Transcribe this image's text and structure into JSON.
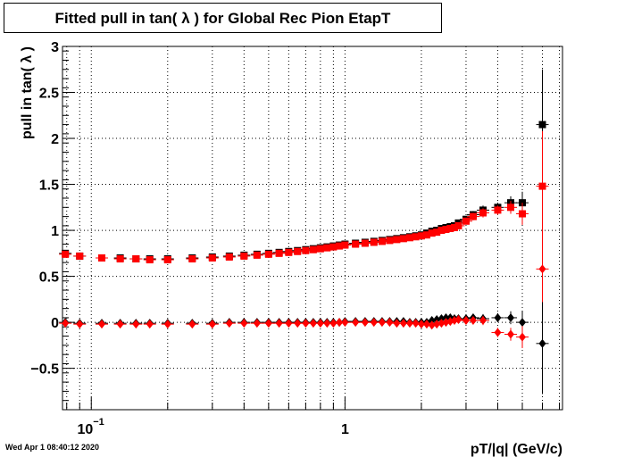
{
  "title": "Fitted pull in tan( λ ) for Global Rec Pion EtapT",
  "timestamp": "Wed Apr  1 08:40:12 2020",
  "chart_data": {
    "type": "scatter",
    "title": "Fitted pull in tan( λ ) for Global Rec Pion EtapT",
    "xlabel": "pT/|q| (GeV/c)",
    "ylabel": "pull in tan( λ )",
    "xscale": "log",
    "xlim": [
      0.077,
      7.2
    ],
    "ylim": [
      -0.95,
      3.0
    ],
    "grid": true,
    "y_ticks": [
      {
        "value": -0.5,
        "label": "−0.5"
      },
      {
        "value": 0,
        "label": "0"
      },
      {
        "value": 0.5,
        "label": "0.5"
      },
      {
        "value": 1,
        "label": "1"
      },
      {
        "value": 1.5,
        "label": "1.5"
      },
      {
        "value": 2,
        "label": "2"
      },
      {
        "value": 2.5,
        "label": "2.5"
      },
      {
        "value": 3,
        "label": "3"
      }
    ],
    "x_ticks": [
      {
        "value": 0.1,
        "label": "10",
        "exponent": "−1"
      },
      {
        "value": 1,
        "label": "1",
        "exponent": ""
      }
    ],
    "series": [
      {
        "marker": "square",
        "color": "#000000",
        "role": "mean",
        "x": [
          0.079,
          0.09,
          0.11,
          0.13,
          0.15,
          0.17,
          0.2,
          0.25,
          0.3,
          0.35,
          0.4,
          0.45,
          0.5,
          0.55,
          0.6,
          0.65,
          0.7,
          0.75,
          0.8,
          0.85,
          0.9,
          0.95,
          1.0,
          1.1,
          1.2,
          1.3,
          1.4,
          1.5,
          1.6,
          1.7,
          1.8,
          1.9,
          2.0,
          2.1,
          2.2,
          2.3,
          2.4,
          2.5,
          2.6,
          2.7,
          2.8,
          3.0,
          3.2,
          3.5,
          4.0,
          4.5,
          5.0,
          6.0
        ],
        "y": [
          0.75,
          0.72,
          0.7,
          0.7,
          0.69,
          0.69,
          0.69,
          0.7,
          0.71,
          0.72,
          0.73,
          0.74,
          0.75,
          0.76,
          0.77,
          0.78,
          0.79,
          0.8,
          0.81,
          0.82,
          0.83,
          0.84,
          0.85,
          0.86,
          0.87,
          0.88,
          0.89,
          0.9,
          0.91,
          0.92,
          0.93,
          0.94,
          0.95,
          0.97,
          0.99,
          1.0,
          1.02,
          1.03,
          1.04,
          1.05,
          1.08,
          1.12,
          1.17,
          1.22,
          1.25,
          1.3,
          1.3,
          2.15
        ],
        "yerr": [
          0.03,
          0.02,
          0.01,
          0.01,
          0.01,
          0.01,
          0.01,
          0.01,
          0.01,
          0.01,
          0.01,
          0.01,
          0.01,
          0.01,
          0.01,
          0.01,
          0.01,
          0.01,
          0.01,
          0.01,
          0.01,
          0.01,
          0.01,
          0.01,
          0.01,
          0.01,
          0.01,
          0.01,
          0.01,
          0.01,
          0.01,
          0.01,
          0.02,
          0.02,
          0.02,
          0.02,
          0.02,
          0.02,
          0.02,
          0.03,
          0.03,
          0.03,
          0.04,
          0.05,
          0.05,
          0.07,
          0.12,
          0.6
        ]
      },
      {
        "marker": "square",
        "color": "#ff0000",
        "role": "mean",
        "x": [
          0.079,
          0.09,
          0.11,
          0.13,
          0.15,
          0.17,
          0.2,
          0.25,
          0.3,
          0.35,
          0.4,
          0.45,
          0.5,
          0.55,
          0.6,
          0.65,
          0.7,
          0.75,
          0.8,
          0.85,
          0.9,
          0.95,
          1.0,
          1.1,
          1.2,
          1.3,
          1.4,
          1.5,
          1.6,
          1.7,
          1.8,
          1.9,
          2.0,
          2.1,
          2.2,
          2.3,
          2.4,
          2.5,
          2.6,
          2.7,
          2.8,
          3.0,
          3.2,
          3.5,
          4.0,
          4.5,
          5.0,
          6.0
        ],
        "y": [
          0.74,
          0.72,
          0.7,
          0.69,
          0.69,
          0.68,
          0.68,
          0.69,
          0.7,
          0.71,
          0.72,
          0.73,
          0.74,
          0.75,
          0.76,
          0.77,
          0.78,
          0.79,
          0.8,
          0.81,
          0.82,
          0.83,
          0.84,
          0.85,
          0.86,
          0.87,
          0.88,
          0.89,
          0.9,
          0.91,
          0.92,
          0.93,
          0.94,
          0.95,
          0.97,
          0.98,
          1.0,
          1.01,
          1.02,
          1.03,
          1.05,
          1.1,
          1.15,
          1.19,
          1.22,
          1.25,
          1.18,
          1.48
        ],
        "yerr": [
          0.03,
          0.02,
          0.01,
          0.01,
          0.01,
          0.01,
          0.01,
          0.01,
          0.01,
          0.01,
          0.01,
          0.01,
          0.01,
          0.01,
          0.01,
          0.01,
          0.01,
          0.01,
          0.01,
          0.01,
          0.01,
          0.01,
          0.01,
          0.01,
          0.01,
          0.01,
          0.01,
          0.01,
          0.01,
          0.01,
          0.01,
          0.01,
          0.02,
          0.02,
          0.02,
          0.02,
          0.02,
          0.02,
          0.02,
          0.03,
          0.03,
          0.03,
          0.04,
          0.05,
          0.05,
          0.07,
          0.12,
          0.6
        ]
      },
      {
        "marker": "diamond",
        "color": "#000000",
        "role": "sigma-offset",
        "x": [
          0.079,
          0.09,
          0.11,
          0.13,
          0.15,
          0.17,
          0.2,
          0.25,
          0.3,
          0.35,
          0.4,
          0.45,
          0.5,
          0.55,
          0.6,
          0.65,
          0.7,
          0.75,
          0.8,
          0.85,
          0.9,
          0.95,
          1.0,
          1.1,
          1.2,
          1.3,
          1.4,
          1.5,
          1.6,
          1.7,
          1.8,
          1.9,
          2.0,
          2.1,
          2.2,
          2.3,
          2.4,
          2.5,
          2.6,
          2.7,
          2.8,
          3.0,
          3.2,
          3.5,
          4.0,
          4.5,
          5.0,
          6.0
        ],
        "y": [
          0.0,
          -0.01,
          -0.01,
          -0.01,
          -0.01,
          -0.01,
          -0.01,
          -0.01,
          -0.01,
          0.0,
          0.0,
          0.0,
          0.0,
          0.0,
          0.0,
          0.0,
          0.0,
          0.0,
          0.0,
          0.0,
          0.0,
          0.0,
          0.01,
          0.01,
          0.01,
          0.01,
          0.01,
          0.01,
          0.01,
          0.01,
          0.0,
          0.0,
          0.0,
          0.0,
          0.02,
          0.03,
          0.04,
          0.05,
          0.05,
          0.04,
          0.04,
          0.04,
          0.05,
          0.04,
          0.05,
          0.05,
          0.0,
          -0.23
        ],
        "yerr": [
          0.03,
          0.02,
          0.01,
          0.01,
          0.01,
          0.01,
          0.01,
          0.01,
          0.01,
          0.01,
          0.01,
          0.01,
          0.01,
          0.01,
          0.01,
          0.01,
          0.01,
          0.01,
          0.01,
          0.01,
          0.01,
          0.01,
          0.01,
          0.01,
          0.01,
          0.01,
          0.01,
          0.01,
          0.01,
          0.01,
          0.01,
          0.01,
          0.02,
          0.02,
          0.02,
          0.02,
          0.02,
          0.02,
          0.02,
          0.03,
          0.03,
          0.03,
          0.04,
          0.05,
          0.05,
          0.07,
          0.12,
          0.55
        ]
      },
      {
        "marker": "diamond",
        "color": "#ff0000",
        "role": "sigma-offset",
        "x": [
          0.079,
          0.09,
          0.11,
          0.13,
          0.15,
          0.17,
          0.2,
          0.25,
          0.3,
          0.35,
          0.4,
          0.45,
          0.5,
          0.55,
          0.6,
          0.65,
          0.7,
          0.75,
          0.8,
          0.85,
          0.9,
          0.95,
          1.0,
          1.1,
          1.2,
          1.3,
          1.4,
          1.5,
          1.6,
          1.7,
          1.8,
          1.9,
          2.0,
          2.1,
          2.2,
          2.3,
          2.4,
          2.5,
          2.6,
          2.7,
          2.8,
          3.0,
          3.2,
          3.5,
          4.0,
          4.5,
          5.0,
          6.0
        ],
        "y": [
          -0.01,
          -0.02,
          -0.02,
          -0.02,
          -0.02,
          -0.02,
          -0.02,
          -0.02,
          -0.02,
          -0.01,
          -0.01,
          -0.01,
          -0.01,
          -0.01,
          -0.01,
          -0.01,
          -0.01,
          -0.01,
          -0.01,
          -0.01,
          -0.01,
          0.0,
          0.0,
          0.0,
          0.0,
          0.0,
          0.0,
          0.0,
          -0.01,
          -0.01,
          -0.01,
          -0.01,
          -0.02,
          -0.02,
          -0.03,
          -0.02,
          -0.01,
          0.0,
          0.01,
          0.02,
          0.03,
          0.02,
          0.02,
          0.02,
          -0.11,
          -0.13,
          -0.16,
          0.58
        ],
        "yerr": [
          0.03,
          0.02,
          0.01,
          0.01,
          0.01,
          0.01,
          0.01,
          0.01,
          0.01,
          0.01,
          0.01,
          0.01,
          0.01,
          0.01,
          0.01,
          0.01,
          0.01,
          0.01,
          0.01,
          0.01,
          0.01,
          0.01,
          0.01,
          0.01,
          0.01,
          0.01,
          0.01,
          0.01,
          0.01,
          0.01,
          0.01,
          0.01,
          0.02,
          0.02,
          0.02,
          0.02,
          0.02,
          0.02,
          0.02,
          0.03,
          0.03,
          0.03,
          0.04,
          0.05,
          0.05,
          0.07,
          0.12,
          0.36
        ]
      }
    ]
  }
}
